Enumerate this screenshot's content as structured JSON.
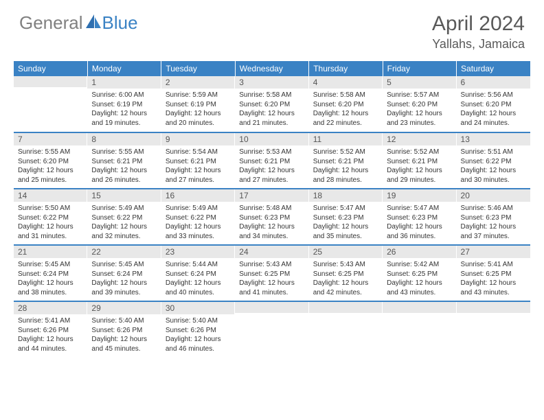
{
  "brand": {
    "part1": "General",
    "part2": "Blue"
  },
  "title": {
    "month_year": "April 2024",
    "location": "Yallahs, Jamaica"
  },
  "colors": {
    "header_bg": "#3a82c4",
    "header_text": "#ffffff",
    "daynum_bg": "#e8e8e8",
    "brand_gray": "#808080",
    "brand_blue": "#3a82c4",
    "title_color": "#595959",
    "border": "#3a82c4"
  },
  "weekdays": [
    "Sunday",
    "Monday",
    "Tuesday",
    "Wednesday",
    "Thursday",
    "Friday",
    "Saturday"
  ],
  "weeks": [
    [
      {
        "n": "",
        "sr": "",
        "ss": "",
        "dl": ""
      },
      {
        "n": "1",
        "sr": "Sunrise: 6:00 AM",
        "ss": "Sunset: 6:19 PM",
        "dl": "Daylight: 12 hours and 19 minutes."
      },
      {
        "n": "2",
        "sr": "Sunrise: 5:59 AM",
        "ss": "Sunset: 6:19 PM",
        "dl": "Daylight: 12 hours and 20 minutes."
      },
      {
        "n": "3",
        "sr": "Sunrise: 5:58 AM",
        "ss": "Sunset: 6:20 PM",
        "dl": "Daylight: 12 hours and 21 minutes."
      },
      {
        "n": "4",
        "sr": "Sunrise: 5:58 AM",
        "ss": "Sunset: 6:20 PM",
        "dl": "Daylight: 12 hours and 22 minutes."
      },
      {
        "n": "5",
        "sr": "Sunrise: 5:57 AM",
        "ss": "Sunset: 6:20 PM",
        "dl": "Daylight: 12 hours and 23 minutes."
      },
      {
        "n": "6",
        "sr": "Sunrise: 5:56 AM",
        "ss": "Sunset: 6:20 PM",
        "dl": "Daylight: 12 hours and 24 minutes."
      }
    ],
    [
      {
        "n": "7",
        "sr": "Sunrise: 5:55 AM",
        "ss": "Sunset: 6:20 PM",
        "dl": "Daylight: 12 hours and 25 minutes."
      },
      {
        "n": "8",
        "sr": "Sunrise: 5:55 AM",
        "ss": "Sunset: 6:21 PM",
        "dl": "Daylight: 12 hours and 26 minutes."
      },
      {
        "n": "9",
        "sr": "Sunrise: 5:54 AM",
        "ss": "Sunset: 6:21 PM",
        "dl": "Daylight: 12 hours and 27 minutes."
      },
      {
        "n": "10",
        "sr": "Sunrise: 5:53 AM",
        "ss": "Sunset: 6:21 PM",
        "dl": "Daylight: 12 hours and 27 minutes."
      },
      {
        "n": "11",
        "sr": "Sunrise: 5:52 AM",
        "ss": "Sunset: 6:21 PM",
        "dl": "Daylight: 12 hours and 28 minutes."
      },
      {
        "n": "12",
        "sr": "Sunrise: 5:52 AM",
        "ss": "Sunset: 6:21 PM",
        "dl": "Daylight: 12 hours and 29 minutes."
      },
      {
        "n": "13",
        "sr": "Sunrise: 5:51 AM",
        "ss": "Sunset: 6:22 PM",
        "dl": "Daylight: 12 hours and 30 minutes."
      }
    ],
    [
      {
        "n": "14",
        "sr": "Sunrise: 5:50 AM",
        "ss": "Sunset: 6:22 PM",
        "dl": "Daylight: 12 hours and 31 minutes."
      },
      {
        "n": "15",
        "sr": "Sunrise: 5:49 AM",
        "ss": "Sunset: 6:22 PM",
        "dl": "Daylight: 12 hours and 32 minutes."
      },
      {
        "n": "16",
        "sr": "Sunrise: 5:49 AM",
        "ss": "Sunset: 6:22 PM",
        "dl": "Daylight: 12 hours and 33 minutes."
      },
      {
        "n": "17",
        "sr": "Sunrise: 5:48 AM",
        "ss": "Sunset: 6:23 PM",
        "dl": "Daylight: 12 hours and 34 minutes."
      },
      {
        "n": "18",
        "sr": "Sunrise: 5:47 AM",
        "ss": "Sunset: 6:23 PM",
        "dl": "Daylight: 12 hours and 35 minutes."
      },
      {
        "n": "19",
        "sr": "Sunrise: 5:47 AM",
        "ss": "Sunset: 6:23 PM",
        "dl": "Daylight: 12 hours and 36 minutes."
      },
      {
        "n": "20",
        "sr": "Sunrise: 5:46 AM",
        "ss": "Sunset: 6:23 PM",
        "dl": "Daylight: 12 hours and 37 minutes."
      }
    ],
    [
      {
        "n": "21",
        "sr": "Sunrise: 5:45 AM",
        "ss": "Sunset: 6:24 PM",
        "dl": "Daylight: 12 hours and 38 minutes."
      },
      {
        "n": "22",
        "sr": "Sunrise: 5:45 AM",
        "ss": "Sunset: 6:24 PM",
        "dl": "Daylight: 12 hours and 39 minutes."
      },
      {
        "n": "23",
        "sr": "Sunrise: 5:44 AM",
        "ss": "Sunset: 6:24 PM",
        "dl": "Daylight: 12 hours and 40 minutes."
      },
      {
        "n": "24",
        "sr": "Sunrise: 5:43 AM",
        "ss": "Sunset: 6:25 PM",
        "dl": "Daylight: 12 hours and 41 minutes."
      },
      {
        "n": "25",
        "sr": "Sunrise: 5:43 AM",
        "ss": "Sunset: 6:25 PM",
        "dl": "Daylight: 12 hours and 42 minutes."
      },
      {
        "n": "26",
        "sr": "Sunrise: 5:42 AM",
        "ss": "Sunset: 6:25 PM",
        "dl": "Daylight: 12 hours and 43 minutes."
      },
      {
        "n": "27",
        "sr": "Sunrise: 5:41 AM",
        "ss": "Sunset: 6:25 PM",
        "dl": "Daylight: 12 hours and 43 minutes."
      }
    ],
    [
      {
        "n": "28",
        "sr": "Sunrise: 5:41 AM",
        "ss": "Sunset: 6:26 PM",
        "dl": "Daylight: 12 hours and 44 minutes."
      },
      {
        "n": "29",
        "sr": "Sunrise: 5:40 AM",
        "ss": "Sunset: 6:26 PM",
        "dl": "Daylight: 12 hours and 45 minutes."
      },
      {
        "n": "30",
        "sr": "Sunrise: 5:40 AM",
        "ss": "Sunset: 6:26 PM",
        "dl": "Daylight: 12 hours and 46 minutes."
      },
      {
        "n": "",
        "sr": "",
        "ss": "",
        "dl": ""
      },
      {
        "n": "",
        "sr": "",
        "ss": "",
        "dl": ""
      },
      {
        "n": "",
        "sr": "",
        "ss": "",
        "dl": ""
      },
      {
        "n": "",
        "sr": "",
        "ss": "",
        "dl": ""
      }
    ]
  ]
}
